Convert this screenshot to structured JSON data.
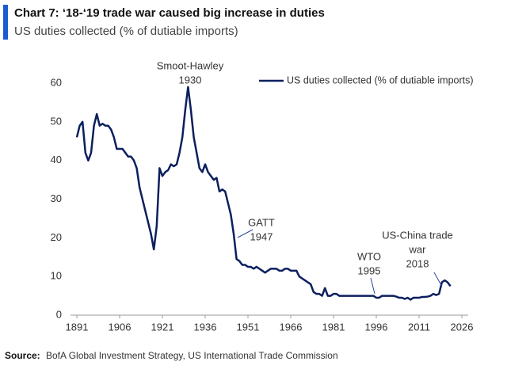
{
  "chart_data": {
    "type": "line",
    "title": "Chart 7: ‘18-‘19 trade war caused big increase in duties",
    "subtitle": "US duties collected (% of dutiable imports)",
    "source_label": "Source:",
    "source": "BofA Global Investment Strategy, US International Trade Commission",
    "legend": "upper right",
    "xlim": [
      1891,
      2026
    ],
    "xticks": [
      1891,
      1906,
      1921,
      1936,
      1951,
      1966,
      1981,
      1996,
      2011,
      2026
    ],
    "ylim": [
      0,
      60
    ],
    "yticks": [
      0,
      10,
      20,
      30,
      40,
      50,
      60
    ],
    "annotations": [
      [
        "Smoot-Hawley",
        "1930"
      ],
      [
        "GATT",
        "1947"
      ],
      [
        "WTO",
        "1995"
      ],
      [
        "US-China trade",
        "war",
        "2018"
      ]
    ],
    "x": [
      1891,
      1892,
      1893,
      1894,
      1895,
      1896,
      1897,
      1898,
      1899,
      1900,
      1901,
      1902,
      1903,
      1904,
      1905,
      1906,
      1907,
      1908,
      1909,
      1910,
      1911,
      1912,
      1913,
      1914,
      1915,
      1916,
      1917,
      1918,
      1919,
      1920,
      1921,
      1922,
      1923,
      1924,
      1925,
      1926,
      1927,
      1928,
      1929,
      1930,
      1931,
      1932,
      1933,
      1934,
      1935,
      1936,
      1937,
      1938,
      1939,
      1940,
      1941,
      1942,
      1943,
      1944,
      1945,
      1946,
      1947,
      1948,
      1949,
      1950,
      1951,
      1952,
      1953,
      1954,
      1955,
      1956,
      1957,
      1958,
      1959,
      1960,
      1961,
      1962,
      1963,
      1964,
      1965,
      1966,
      1967,
      1968,
      1969,
      1970,
      1971,
      1972,
      1973,
      1974,
      1975,
      1976,
      1977,
      1978,
      1979,
      1980,
      1981,
      1982,
      1983,
      1984,
      1985,
      1986,
      1987,
      1988,
      1989,
      1990,
      1991,
      1992,
      1993,
      1994,
      1995,
      1996,
      1997,
      1998,
      1999,
      2000,
      2001,
      2002,
      2003,
      2004,
      2005,
      2006,
      2007,
      2008,
      2009,
      2010,
      2011,
      2012,
      2013,
      2014,
      2015,
      2016,
      2017,
      2018,
      2019,
      2020,
      2021,
      2022
    ],
    "series": [
      {
        "name": "US duties collected (% of dutiable imports)",
        "color": "#0c1f5e",
        "values": [
          46,
          49,
          50,
          42,
          40,
          42,
          49,
          52,
          49,
          49.5,
          49,
          49,
          48,
          46,
          43,
          43,
          43,
          42,
          41,
          41,
          40,
          38,
          33,
          30,
          27,
          24,
          21,
          17,
          23,
          38,
          36,
          37,
          37.5,
          39,
          38.5,
          39,
          42,
          46,
          53,
          59,
          53,
          46,
          42,
          38,
          37,
          39,
          37,
          36,
          35,
          35.5,
          32,
          32.5,
          32,
          29,
          26,
          21,
          14.5,
          14,
          13,
          13,
          12.5,
          12.5,
          12,
          12.5,
          12,
          11.5,
          11,
          11.5,
          12,
          12,
          12,
          11.5,
          11.5,
          12,
          12,
          11.5,
          11.5,
          11.5,
          10,
          9.5,
          9,
          8.5,
          8,
          6,
          5.5,
          5.5,
          5,
          7,
          5,
          5,
          5.5,
          5.5,
          5,
          5,
          5,
          5,
          5,
          5,
          5,
          5,
          5,
          5,
          5,
          5,
          5,
          4.5,
          4.5,
          5,
          5,
          5,
          5,
          5,
          4.8,
          4.5,
          4.5,
          4.2,
          4.5,
          4,
          4.5,
          4.5,
          4.5,
          4.7,
          4.7,
          4.8,
          5,
          5.5,
          5.2,
          5.5,
          8.5,
          9,
          8.5,
          7.5
        ]
      }
    ]
  }
}
